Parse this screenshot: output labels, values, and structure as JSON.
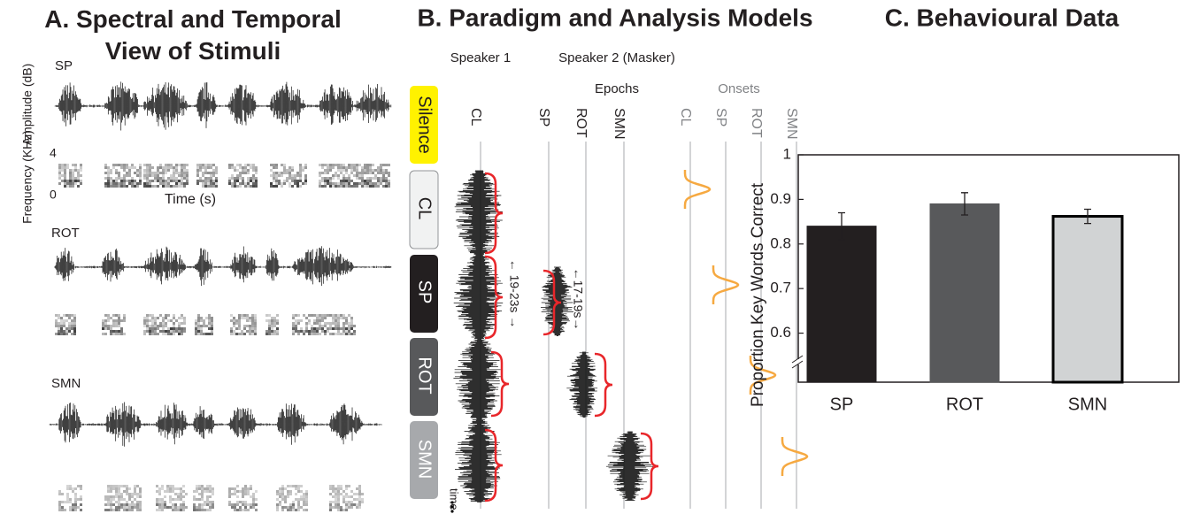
{
  "panel_a": {
    "title": "A.  Spectral and Temporal View of Stimuli",
    "labels": {
      "sp": "SP",
      "amplitude": "Amplitude (dB)",
      "frequency": "Frequency (KHz)",
      "freq_max": 4,
      "freq_min": 0,
      "time": "Time (s)",
      "rot": "ROT",
      "smn": "SMN"
    }
  },
  "panel_b": {
    "title": "B.  Paradigm and Analysis Models",
    "speaker1": "Speaker 1",
    "speaker2": "Speaker 2 (Masker)",
    "epochs": "Epochs",
    "onsets": "Onsets",
    "conditions": [
      "Silence",
      "CL",
      "SP",
      "ROT",
      "SMN"
    ],
    "epoch_columns": [
      "CL",
      "SP",
      "ROT",
      "SMN"
    ],
    "onset_columns": [
      "CL",
      "SP",
      "ROT",
      "SMN"
    ],
    "duration_clean": "← 19-23s →",
    "duration_masker": "←17-19s→",
    "time": "time"
  },
  "chart_data": {
    "type": "bar",
    "title": "C.  Behavioural Data",
    "ylabel": "Proportion Key Words Correct",
    "categories": [
      "SP",
      "ROT",
      "SMN"
    ],
    "values": [
      0.84,
      0.89,
      0.862
    ],
    "errors": [
      0.03,
      0.025,
      0.016
    ],
    "colors": [
      "#231f20",
      "#58595b",
      "#d1d3d4"
    ],
    "ylim": [
      0.49,
      1
    ],
    "yticks": [
      0.6,
      0.7,
      0.8,
      0.9,
      1
    ],
    "axis_break": true
  }
}
